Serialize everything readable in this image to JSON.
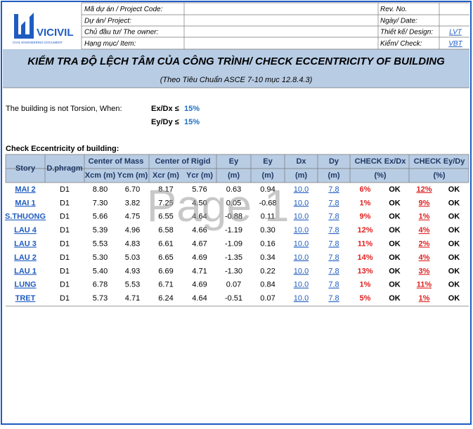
{
  "logo": {
    "name": "VICIVIL",
    "tagline": "CIVIL ENGINEERING DOCUMENT"
  },
  "header": {
    "rows": [
      {
        "label": "Mã dự án / Project Code:",
        "right_label": "Rev. No."
      },
      {
        "label": "Dự án/ Project:",
        "right_label": "Ngày/ Date:"
      },
      {
        "label": "Chủ đầu tư/ The owner:",
        "right_label": "Thiết kế/ Design:",
        "right_value": "LVT"
      },
      {
        "label": "Hạng mục/ Item:",
        "right_label": "Kiểm/ Check:",
        "right_value": "VBT"
      }
    ]
  },
  "title": "KIỂM TRA ĐỘ LỆCH TÂM CỦA CÔNG TRÌNH/ CHECK ECCENTRICITY OF BUILDING",
  "subtitle": "(Theo Tiêu Chuẩn ASCE 7-10 mục 12.8.4.3)",
  "condition": {
    "text": "The building is not Torsion, When:",
    "ex_label": "Ex/Dx ≤",
    "ex_limit": "15%",
    "ey_label": "Ey/Dy ≤",
    "ey_limit": "15%"
  },
  "section_title": "Check Eccentricity of building:",
  "watermark": "Page 1",
  "table": {
    "header_top": [
      "Story",
      "D.phragm",
      "Center of Mass",
      "Center of Rigid",
      "Ey",
      "Ey",
      "Dx",
      "Dy",
      "CHECK Ex/Dx",
      "CHECK Ey/Dy"
    ],
    "header_bottom": [
      "Xcm (m)",
      "Ycm (m)",
      "Xcr (m)",
      "Ycr (m)",
      "(m)",
      "(m)",
      "(m)",
      "(m)",
      "(%)",
      "(%)"
    ],
    "rows": [
      [
        "MAI 2",
        "D1",
        "8.80",
        "6.70",
        "8.17",
        "5.76",
        "0.63",
        "0.94",
        "10.0",
        "7.8",
        "6%",
        "OK",
        "12%",
        "OK"
      ],
      [
        "MAI 1",
        "D1",
        "7.30",
        "3.82",
        "7.25",
        "4.50",
        "0.05",
        "-0.68",
        "10.0",
        "7.8",
        "1%",
        "OK",
        "9%",
        "OK"
      ],
      [
        "S.THUONG",
        "D1",
        "5.66",
        "4.75",
        "6.55",
        "4.64",
        "-0.88",
        "0.11",
        "10.0",
        "7.8",
        "9%",
        "OK",
        "1%",
        "OK"
      ],
      [
        "LAU 4",
        "D1",
        "5.39",
        "4.96",
        "6.58",
        "4.66",
        "-1.19",
        "0.30",
        "10.0",
        "7.8",
        "12%",
        "OK",
        "4%",
        "OK"
      ],
      [
        "LAU 3",
        "D1",
        "5.53",
        "4.83",
        "6.61",
        "4.67",
        "-1.09",
        "0.16",
        "10.0",
        "7.8",
        "11%",
        "OK",
        "2%",
        "OK"
      ],
      [
        "LAU 2",
        "D1",
        "5.30",
        "5.03",
        "6.65",
        "4.69",
        "-1.35",
        "0.34",
        "10.0",
        "7.8",
        "14%",
        "OK",
        "4%",
        "OK"
      ],
      [
        "LAU 1",
        "D1",
        "5.40",
        "4.93",
        "6.69",
        "4.71",
        "-1.30",
        "0.22",
        "10.0",
        "7.8",
        "13%",
        "OK",
        "3%",
        "OK"
      ],
      [
        "LUNG",
        "D1",
        "6.78",
        "5.53",
        "6.71",
        "4.69",
        "0.07",
        "0.84",
        "10.0",
        "7.8",
        "1%",
        "OK",
        "11%",
        "OK"
      ],
      [
        "TRET",
        "D1",
        "5.73",
        "4.71",
        "6.24",
        "4.64",
        "-0.51",
        "0.07",
        "10.0",
        "7.8",
        "5%",
        "OK",
        "1%",
        "OK"
      ]
    ]
  }
}
